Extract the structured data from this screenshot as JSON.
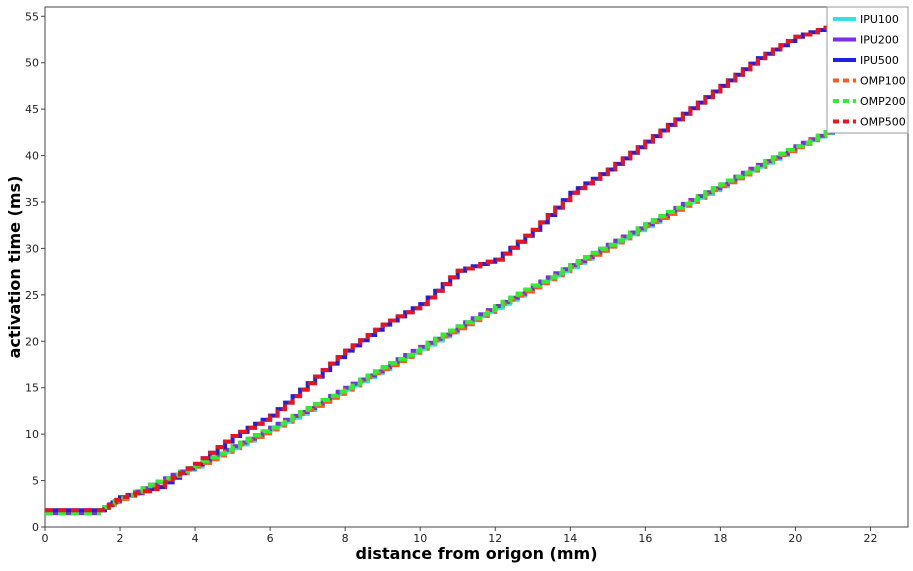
{
  "chart_data": {
    "type": "line",
    "xlabel": "distance from origon (mm)",
    "ylabel": "activation time (ms)",
    "xlim": [
      0,
      23
    ],
    "ylim": [
      0,
      56
    ],
    "xticks": [
      0,
      2,
      4,
      6,
      8,
      10,
      12,
      14,
      16,
      18,
      20,
      22
    ],
    "yticks": [
      0,
      5,
      10,
      15,
      20,
      25,
      30,
      35,
      40,
      45,
      50,
      55
    ],
    "grid": false,
    "legend_position": "top-right",
    "series": [
      {
        "name": "IPU100",
        "color": "#33dfe8",
        "style": "solid",
        "x": [
          0,
          1.3,
          2,
          3,
          4,
          5,
          6,
          7,
          8,
          9,
          10,
          11,
          12,
          13,
          14,
          15,
          16,
          17,
          18,
          19,
          20,
          21,
          21.3
        ],
        "y": [
          1.5,
          1.5,
          3.0,
          4.8,
          6.5,
          8.5,
          10.5,
          12.6,
          14.8,
          17.0,
          19.2,
          21.4,
          23.6,
          25.8,
          28.0,
          30.2,
          32.4,
          34.6,
          36.7,
          38.8,
          40.9,
          42.8,
          43.2
        ]
      },
      {
        "name": "IPU200",
        "color": "#7a2ee6",
        "style": "solid",
        "x": [
          0,
          1.3,
          2,
          3,
          4,
          5,
          6,
          7,
          8,
          9,
          10,
          11,
          12,
          13,
          14,
          15,
          16,
          17,
          18,
          19,
          20,
          21,
          21.3
        ],
        "y": [
          1.5,
          1.5,
          3.1,
          4.9,
          6.7,
          8.7,
          10.7,
          12.8,
          15.0,
          17.2,
          19.4,
          21.6,
          23.8,
          26.0,
          28.2,
          30.4,
          32.6,
          34.8,
          36.9,
          39.0,
          41.0,
          42.9,
          43.2
        ]
      },
      {
        "name": "IPU500",
        "color": "#1e22e0",
        "style": "solid",
        "x": [
          0,
          1.5,
          2,
          3,
          4,
          5,
          6,
          7,
          8,
          9,
          10,
          11,
          12,
          13,
          14,
          15,
          16,
          17,
          18,
          19,
          20,
          21,
          21.3
        ],
        "y": [
          1.8,
          1.8,
          3.2,
          4.3,
          6.8,
          9.8,
          12.0,
          15.5,
          19.0,
          21.8,
          24.0,
          27.6,
          28.8,
          32.0,
          36.0,
          38.5,
          41.5,
          44.5,
          47.5,
          50.5,
          52.8,
          54.0,
          54.2
        ]
      },
      {
        "name": "OMP100",
        "color": "#ff5a1a",
        "style": "dashed",
        "x": [
          0,
          1.3,
          2,
          3,
          4,
          5,
          6,
          7,
          8,
          9,
          10,
          11,
          12,
          13,
          14,
          15,
          16,
          17,
          18,
          19,
          20,
          21,
          21.3
        ],
        "y": [
          1.5,
          1.5,
          3.0,
          4.8,
          6.5,
          8.5,
          10.5,
          12.6,
          14.8,
          17.0,
          19.2,
          21.4,
          23.6,
          25.8,
          28.0,
          30.2,
          32.4,
          34.6,
          36.7,
          38.8,
          40.9,
          42.8,
          43.2
        ]
      },
      {
        "name": "OMP200",
        "color": "#2ef02e",
        "style": "dashed",
        "x": [
          0,
          1.3,
          2,
          3,
          4,
          5,
          6,
          7,
          8,
          9,
          10,
          11,
          12,
          13,
          14,
          15,
          16,
          17,
          18,
          19,
          20,
          21,
          21.3
        ],
        "y": [
          1.5,
          1.5,
          3.1,
          4.9,
          6.7,
          8.7,
          10.7,
          12.8,
          15.0,
          17.2,
          19.4,
          21.6,
          23.8,
          26.0,
          28.2,
          30.4,
          32.6,
          34.8,
          36.9,
          39.0,
          41.0,
          42.9,
          43.2
        ]
      },
      {
        "name": "OMP500",
        "color": "#e8141e",
        "style": "dashed",
        "x": [
          0,
          1.5,
          2,
          3,
          4,
          5,
          6,
          7,
          8,
          9,
          10,
          11,
          12,
          13,
          14,
          15,
          16,
          17,
          18,
          19,
          20,
          21,
          21.3
        ],
        "y": [
          1.8,
          1.8,
          3.2,
          4.3,
          6.8,
          9.8,
          12.0,
          15.5,
          19.0,
          21.8,
          24.0,
          27.6,
          28.8,
          32.0,
          36.0,
          38.5,
          41.5,
          44.5,
          47.5,
          50.5,
          52.8,
          54.0,
          54.2
        ]
      }
    ]
  }
}
